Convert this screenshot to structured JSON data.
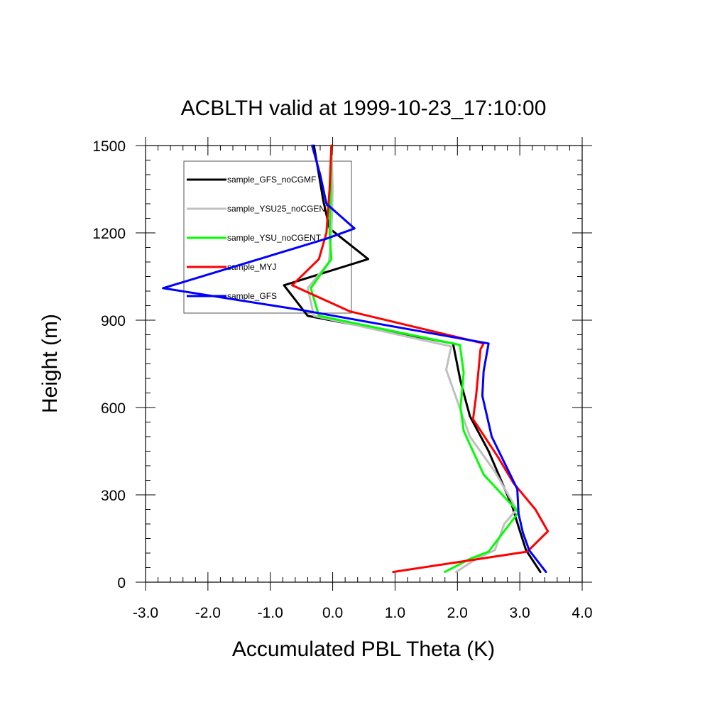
{
  "chart_data": {
    "type": "line",
    "title": "ACBLTH valid at 1999-10-23_17:10:00",
    "xlabel": "Accumulated PBL Theta (K)",
    "ylabel": "Height (m)",
    "xlim": [
      -3.0,
      4.0
    ],
    "ylim": [
      0,
      1500
    ],
    "xticks": [
      -3.0,
      -2.0,
      -1.0,
      0.0,
      1.0,
      2.0,
      3.0,
      4.0
    ],
    "xtick_labels": [
      "-3.0",
      "-2.0",
      "-1.0",
      "0.0",
      "1.0",
      "2.0",
      "3.0",
      "4.0"
    ],
    "yticks": [
      0,
      300,
      600,
      900,
      1200,
      1500
    ],
    "ytick_labels": [
      "0",
      "300",
      "600",
      "900",
      "1200",
      "1500"
    ],
    "grid": false,
    "legend_position": "top-left",
    "series": [
      {
        "name": "sample_GFS_noCGMF",
        "color": "#000000",
        "points": [
          [
            3.33,
            35
          ],
          [
            3.1,
            110
          ],
          [
            2.98,
            190
          ],
          [
            2.88,
            260
          ],
          [
            2.78,
            310
          ],
          [
            2.5,
            450
          ],
          [
            2.2,
            570
          ],
          [
            2.05,
            690
          ],
          [
            1.93,
            820
          ],
          [
            -0.4,
            915
          ],
          [
            -0.78,
            1020
          ],
          [
            0.57,
            1110
          ],
          [
            -0.05,
            1215
          ],
          [
            -0.15,
            1310
          ],
          [
            -0.22,
            1400
          ],
          [
            -0.3,
            1500
          ]
        ]
      },
      {
        "name": "sample_YSU25_noCGENT",
        "color": "#c0c0c0",
        "points": [
          [
            1.98,
            35
          ],
          [
            2.3,
            80
          ],
          [
            2.6,
            110
          ],
          [
            2.75,
            200
          ],
          [
            2.95,
            250
          ],
          [
            2.6,
            380
          ],
          [
            2.2,
            500
          ],
          [
            1.97,
            640
          ],
          [
            1.82,
            730
          ],
          [
            1.9,
            810
          ],
          [
            -0.3,
            915
          ],
          [
            -0.4,
            1010
          ],
          [
            -0.06,
            1100
          ],
          [
            -0.02,
            1200
          ],
          [
            0.0,
            1350
          ],
          [
            -0.02,
            1500
          ]
        ]
      },
      {
        "name": "sample_YSU_noCGENT",
        "color": "#00ff00",
        "points": [
          [
            1.8,
            35
          ],
          [
            2.2,
            80
          ],
          [
            2.5,
            105
          ],
          [
            2.98,
            240
          ],
          [
            2.42,
            370
          ],
          [
            2.1,
            520
          ],
          [
            2.05,
            600
          ],
          [
            2.1,
            720
          ],
          [
            2.04,
            815
          ],
          [
            -0.22,
            915
          ],
          [
            -0.35,
            1010
          ],
          [
            -0.02,
            1110
          ],
          [
            -0.05,
            1200
          ],
          [
            -0.03,
            1350
          ],
          [
            -0.02,
            1500
          ]
        ]
      },
      {
        "name": "sample_MYJ",
        "color": "#ff0000",
        "points": [
          [
            0.97,
            35
          ],
          [
            3.12,
            105
          ],
          [
            3.45,
            175
          ],
          [
            3.25,
            250
          ],
          [
            2.9,
            340
          ],
          [
            2.65,
            430
          ],
          [
            2.25,
            560
          ],
          [
            2.3,
            640
          ],
          [
            2.37,
            800
          ],
          [
            2.42,
            820
          ],
          [
            0.28,
            930
          ],
          [
            -0.65,
            1020
          ],
          [
            -0.22,
            1110
          ],
          [
            -0.1,
            1200
          ],
          [
            -0.05,
            1350
          ],
          [
            -0.02,
            1500
          ]
        ]
      },
      {
        "name": "sample_GFS",
        "color": "#0000ff",
        "points": [
          [
            3.42,
            35
          ],
          [
            3.15,
            110
          ],
          [
            3.05,
            170
          ],
          [
            2.98,
            235
          ],
          [
            2.96,
            320
          ],
          [
            2.55,
            500
          ],
          [
            2.4,
            640
          ],
          [
            2.42,
            725
          ],
          [
            2.5,
            820
          ],
          [
            -0.5,
            935
          ],
          [
            -2.72,
            1010
          ],
          [
            -0.1,
            1180
          ],
          [
            0.35,
            1215
          ],
          [
            -0.1,
            1300
          ],
          [
            -0.2,
            1400
          ],
          [
            -0.33,
            1500
          ]
        ]
      }
    ]
  }
}
